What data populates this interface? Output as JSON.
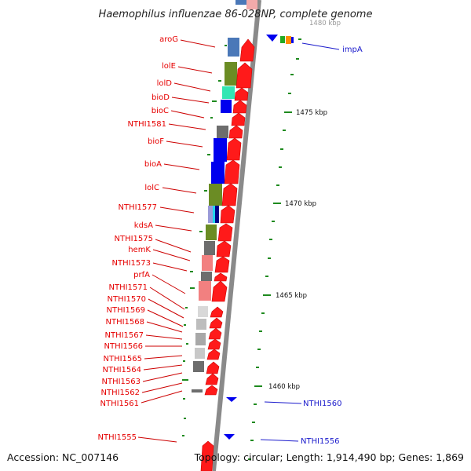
{
  "title": "Haemophilus influenzae 86-028NP, complete genome",
  "footer": {
    "accession": "Accession: NC_007146",
    "summary": "Topology: circular; Length: 1,914,490 bp; Genes: 1,869"
  },
  "colors": {
    "forward_gene": "#ff1a1a",
    "reverse_gene": "#0000ee",
    "backbone": "#8a8a8a",
    "left_labels": "#e60000",
    "right_labels": "#1a1acc",
    "tick": "#1e8a1e"
  },
  "kbp_labels": [
    "1480 kbp",
    "1475 kbp",
    "1470 kbp",
    "1465 kbp",
    "1460 kbp"
  ],
  "left_gene_labels": [
    "aroG",
    "lolE",
    "lolD",
    "bioD",
    "bioC",
    "NTHI1581",
    "bioF",
    "bioA",
    "lolC",
    "NTHI1577",
    "kdsA",
    "NTHI1575",
    "hemK",
    "NTHI1573",
    "prfA",
    "NTHI1571",
    "NTHI1570",
    "NTHI1569",
    "NTHI1568",
    "NTHI1567",
    "NTHI1566",
    "NTHI1565",
    "NTHI1564",
    "NTHI1563",
    "NTHI1562",
    "NTHI1561",
    "NTHI1555"
  ],
  "right_gene_labels": [
    "impA",
    "NTHI1560",
    "NTHI1556"
  ]
}
